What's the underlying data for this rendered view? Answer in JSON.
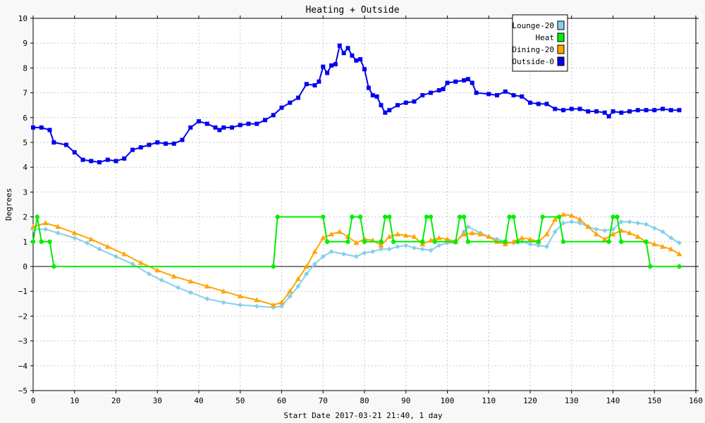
{
  "chart_data": {
    "type": "line",
    "title": "Heating + Outside",
    "xlabel": "Start Date 2017-03-21 21:40, 1 day",
    "ylabel": "Degrees",
    "xlim": [
      0,
      160
    ],
    "ylim": [
      -5,
      10
    ],
    "x_ticks": [
      0,
      10,
      20,
      30,
      40,
      50,
      60,
      70,
      80,
      90,
      100,
      110,
      120,
      130,
      140,
      150,
      160
    ],
    "y_ticks": [
      -5,
      -4,
      -3,
      -2,
      -1,
      0,
      1,
      2,
      3,
      4,
      5,
      6,
      7,
      8,
      9,
      10
    ],
    "grid": true,
    "legend_position": "top-right",
    "series": [
      {
        "name": "Lounge-20",
        "color": "#87ceeb",
        "marker": "diamond",
        "points": [
          [
            0,
            1.5
          ],
          [
            3,
            1.5
          ],
          [
            6,
            1.35
          ],
          [
            10,
            1.15
          ],
          [
            13,
            0.95
          ],
          [
            16,
            0.7
          ],
          [
            20,
            0.4
          ],
          [
            24,
            0.1
          ],
          [
            28,
            -0.3
          ],
          [
            31,
            -0.55
          ],
          [
            35,
            -0.85
          ],
          [
            38,
            -1.05
          ],
          [
            42,
            -1.3
          ],
          [
            46,
            -1.45
          ],
          [
            50,
            -1.55
          ],
          [
            54,
            -1.6
          ],
          [
            58,
            -1.65
          ],
          [
            60,
            -1.6
          ],
          [
            62,
            -1.2
          ],
          [
            64,
            -0.8
          ],
          [
            66,
            -0.3
          ],
          [
            68,
            0.1
          ],
          [
            70,
            0.4
          ],
          [
            72,
            0.6
          ],
          [
            75,
            0.5
          ],
          [
            78,
            0.4
          ],
          [
            80,
            0.55
          ],
          [
            82,
            0.6
          ],
          [
            84,
            0.7
          ],
          [
            86,
            0.7
          ],
          [
            88,
            0.8
          ],
          [
            90,
            0.85
          ],
          [
            92,
            0.75
          ],
          [
            94,
            0.7
          ],
          [
            96,
            0.65
          ],
          [
            98,
            0.85
          ],
          [
            100,
            0.95
          ],
          [
            102,
            0.95
          ],
          [
            104,
            1.4
          ],
          [
            105,
            1.6
          ],
          [
            108,
            1.35
          ],
          [
            110,
            1.2
          ],
          [
            112,
            1.1
          ],
          [
            114,
            1.0
          ],
          [
            116,
            0.95
          ],
          [
            118,
            1.0
          ],
          [
            120,
            0.9
          ],
          [
            122,
            0.85
          ],
          [
            124,
            0.8
          ],
          [
            126,
            1.4
          ],
          [
            128,
            1.75
          ],
          [
            130,
            1.8
          ],
          [
            132,
            1.75
          ],
          [
            134,
            1.6
          ],
          [
            136,
            1.5
          ],
          [
            138,
            1.45
          ],
          [
            140,
            1.5
          ],
          [
            142,
            1.8
          ],
          [
            144,
            1.8
          ],
          [
            146,
            1.75
          ],
          [
            148,
            1.7
          ],
          [
            150,
            1.55
          ],
          [
            152,
            1.4
          ],
          [
            154,
            1.15
          ],
          [
            156,
            0.95
          ]
        ]
      },
      {
        "name": "Heat",
        "color": "#00ee00",
        "marker": "circle",
        "points": [
          [
            0,
            1
          ],
          [
            1,
            2
          ],
          [
            2,
            1
          ],
          [
            4,
            1
          ],
          [
            5,
            0
          ],
          [
            58,
            0
          ],
          [
            59,
            2
          ],
          [
            70,
            2
          ],
          [
            71,
            1
          ],
          [
            76,
            1
          ],
          [
            77,
            2
          ],
          [
            79,
            2
          ],
          [
            80,
            1
          ],
          [
            84,
            1
          ],
          [
            85,
            2
          ],
          [
            86,
            2
          ],
          [
            87,
            1
          ],
          [
            94,
            1
          ],
          [
            95,
            2
          ],
          [
            96,
            2
          ],
          [
            97,
            1
          ],
          [
            102,
            1
          ],
          [
            103,
            2
          ],
          [
            104,
            2
          ],
          [
            105,
            1
          ],
          [
            114,
            1
          ],
          [
            115,
            2
          ],
          [
            116,
            2
          ],
          [
            117,
            1
          ],
          [
            122,
            1
          ],
          [
            123,
            2
          ],
          [
            127,
            2
          ],
          [
            128,
            1
          ],
          [
            139,
            1
          ],
          [
            140,
            2
          ],
          [
            141,
            2
          ],
          [
            142,
            1
          ],
          [
            148,
            1
          ],
          [
            149,
            0
          ],
          [
            156,
            0
          ]
        ]
      },
      {
        "name": "Dining-20",
        "color": "#ffa500",
        "marker": "triangle",
        "points": [
          [
            0,
            1.6
          ],
          [
            3,
            1.75
          ],
          [
            6,
            1.6
          ],
          [
            10,
            1.35
          ],
          [
            14,
            1.1
          ],
          [
            18,
            0.8
          ],
          [
            22,
            0.5
          ],
          [
            26,
            0.15
          ],
          [
            30,
            -0.15
          ],
          [
            34,
            -0.4
          ],
          [
            38,
            -0.6
          ],
          [
            42,
            -0.8
          ],
          [
            46,
            -1.0
          ],
          [
            50,
            -1.2
          ],
          [
            54,
            -1.35
          ],
          [
            58,
            -1.55
          ],
          [
            60,
            -1.45
          ],
          [
            62,
            -1.0
          ],
          [
            64,
            -0.5
          ],
          [
            66,
            0.0
          ],
          [
            68,
            0.6
          ],
          [
            70,
            1.15
          ],
          [
            72,
            1.3
          ],
          [
            74,
            1.4
          ],
          [
            76,
            1.2
          ],
          [
            78,
            0.95
          ],
          [
            80,
            1.1
          ],
          [
            82,
            1.05
          ],
          [
            84,
            0.85
          ],
          [
            86,
            1.2
          ],
          [
            88,
            1.3
          ],
          [
            90,
            1.25
          ],
          [
            92,
            1.2
          ],
          [
            94,
            0.9
          ],
          [
            96,
            1.05
          ],
          [
            98,
            1.15
          ],
          [
            100,
            1.1
          ],
          [
            102,
            1.0
          ],
          [
            104,
            1.3
          ],
          [
            106,
            1.35
          ],
          [
            108,
            1.3
          ],
          [
            110,
            1.2
          ],
          [
            112,
            1.0
          ],
          [
            114,
            0.9
          ],
          [
            116,
            1.0
          ],
          [
            118,
            1.15
          ],
          [
            120,
            1.1
          ],
          [
            122,
            1.0
          ],
          [
            124,
            1.3
          ],
          [
            126,
            1.9
          ],
          [
            128,
            2.1
          ],
          [
            130,
            2.05
          ],
          [
            132,
            1.9
          ],
          [
            134,
            1.6
          ],
          [
            136,
            1.3
          ],
          [
            138,
            1.1
          ],
          [
            140,
            1.3
          ],
          [
            142,
            1.45
          ],
          [
            144,
            1.35
          ],
          [
            146,
            1.2
          ],
          [
            148,
            1.0
          ],
          [
            150,
            0.9
          ],
          [
            152,
            0.8
          ],
          [
            154,
            0.7
          ],
          [
            156,
            0.5
          ]
        ]
      },
      {
        "name": "Outside-0",
        "color": "#0000ee",
        "marker": "square",
        "points": [
          [
            0,
            5.6
          ],
          [
            2,
            5.6
          ],
          [
            4,
            5.5
          ],
          [
            5,
            5.0
          ],
          [
            8,
            4.9
          ],
          [
            10,
            4.6
          ],
          [
            12,
            4.3
          ],
          [
            14,
            4.25
          ],
          [
            16,
            4.2
          ],
          [
            18,
            4.3
          ],
          [
            20,
            4.25
          ],
          [
            22,
            4.35
          ],
          [
            24,
            4.7
          ],
          [
            26,
            4.8
          ],
          [
            28,
            4.9
          ],
          [
            30,
            5.0
          ],
          [
            32,
            4.95
          ],
          [
            34,
            4.95
          ],
          [
            36,
            5.1
          ],
          [
            38,
            5.6
          ],
          [
            40,
            5.85
          ],
          [
            42,
            5.75
          ],
          [
            44,
            5.6
          ],
          [
            45,
            5.5
          ],
          [
            46,
            5.6
          ],
          [
            48,
            5.6
          ],
          [
            50,
            5.7
          ],
          [
            52,
            5.75
          ],
          [
            54,
            5.75
          ],
          [
            56,
            5.9
          ],
          [
            58,
            6.1
          ],
          [
            60,
            6.4
          ],
          [
            62,
            6.6
          ],
          [
            64,
            6.8
          ],
          [
            66,
            7.35
          ],
          [
            68,
            7.3
          ],
          [
            69,
            7.45
          ],
          [
            70,
            8.05
          ],
          [
            71,
            7.8
          ],
          [
            72,
            8.1
          ],
          [
            73,
            8.15
          ],
          [
            74,
            8.9
          ],
          [
            75,
            8.6
          ],
          [
            76,
            8.8
          ],
          [
            77,
            8.5
          ],
          [
            78,
            8.3
          ],
          [
            79,
            8.35
          ],
          [
            80,
            7.95
          ],
          [
            81,
            7.2
          ],
          [
            82,
            6.9
          ],
          [
            83,
            6.85
          ],
          [
            84,
            6.5
          ],
          [
            85,
            6.2
          ],
          [
            86,
            6.3
          ],
          [
            88,
            6.5
          ],
          [
            90,
            6.6
          ],
          [
            92,
            6.65
          ],
          [
            94,
            6.9
          ],
          [
            96,
            7.0
          ],
          [
            98,
            7.1
          ],
          [
            99,
            7.15
          ],
          [
            100,
            7.4
          ],
          [
            102,
            7.45
          ],
          [
            104,
            7.5
          ],
          [
            105,
            7.55
          ],
          [
            106,
            7.4
          ],
          [
            107,
            7.0
          ],
          [
            110,
            6.95
          ],
          [
            112,
            6.9
          ],
          [
            114,
            7.05
          ],
          [
            116,
            6.9
          ],
          [
            118,
            6.85
          ],
          [
            120,
            6.6
          ],
          [
            122,
            6.55
          ],
          [
            124,
            6.55
          ],
          [
            126,
            6.35
          ],
          [
            128,
            6.3
          ],
          [
            130,
            6.35
          ],
          [
            132,
            6.35
          ],
          [
            134,
            6.25
          ],
          [
            136,
            6.25
          ],
          [
            138,
            6.2
          ],
          [
            139,
            6.05
          ],
          [
            140,
            6.25
          ],
          [
            142,
            6.2
          ],
          [
            144,
            6.25
          ],
          [
            146,
            6.3
          ],
          [
            148,
            6.3
          ],
          [
            150,
            6.3
          ],
          [
            152,
            6.35
          ],
          [
            154,
            6.3
          ],
          [
            156,
            6.3
          ]
        ]
      }
    ]
  }
}
